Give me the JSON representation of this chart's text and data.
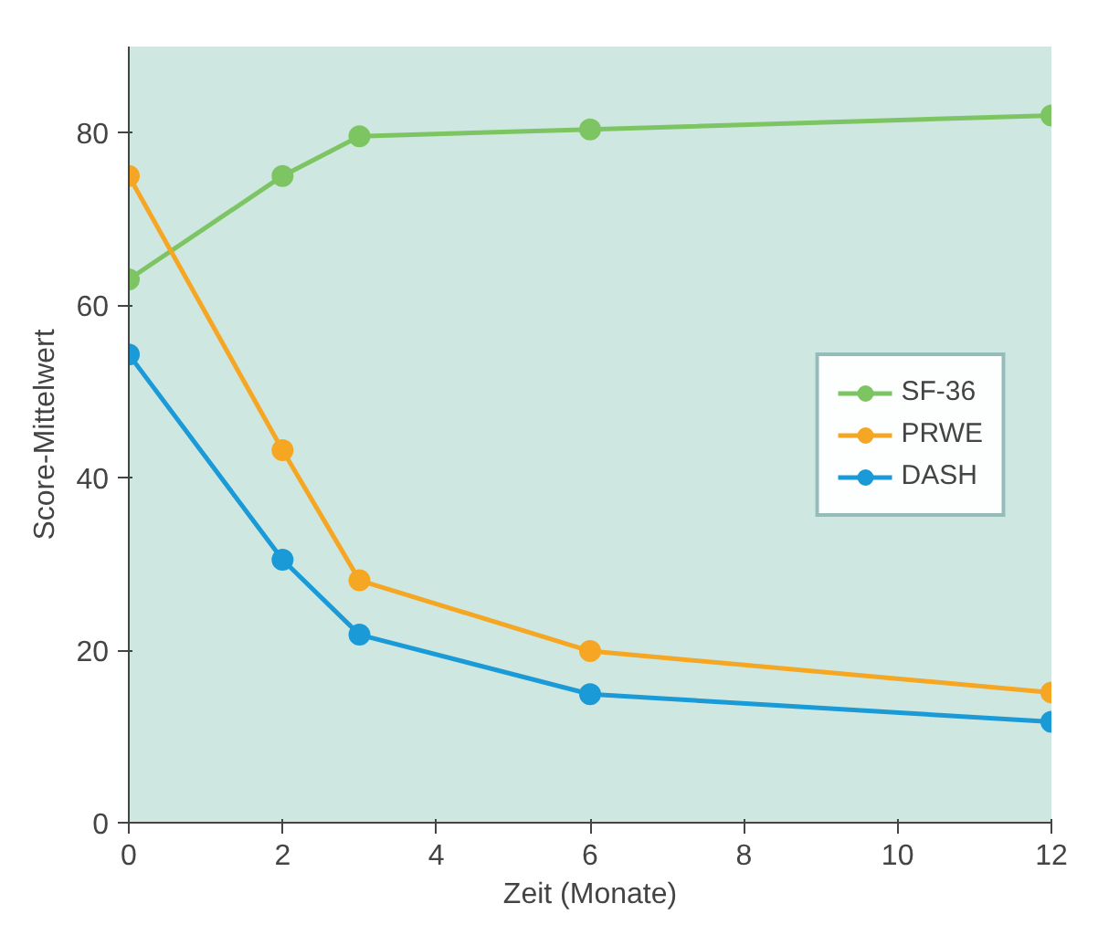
{
  "chart_data": {
    "type": "line",
    "xlabel": "Zeit (Monate)",
    "ylabel": "Score-Mittelwert",
    "xlim": [
      0,
      12
    ],
    "xticks": [
      0,
      2,
      4,
      6,
      8,
      10,
      12
    ],
    "ylim": [
      0,
      90
    ],
    "yticks": [
      0,
      20,
      40,
      60,
      80
    ],
    "grid": false,
    "legend": "right",
    "marker": "circle",
    "line_style": "solid",
    "series": [
      {
        "name": "SF-36",
        "color": "#7dc462",
        "x": [
          0,
          2,
          3,
          6,
          12
        ],
        "values": [
          63,
          75,
          79.6,
          80.4,
          82
        ]
      },
      {
        "name": "PRWE",
        "color": "#f5a623",
        "x": [
          0,
          2,
          3,
          6,
          12
        ],
        "values": [
          75,
          43.2,
          28.1,
          19.9,
          15.1
        ]
      },
      {
        "name": "DASH",
        "color": "#1a9ad6",
        "x": [
          0,
          2,
          3,
          6,
          12
        ],
        "values": [
          54.3,
          30.5,
          21.8,
          14.9,
          11.7
        ]
      }
    ]
  }
}
